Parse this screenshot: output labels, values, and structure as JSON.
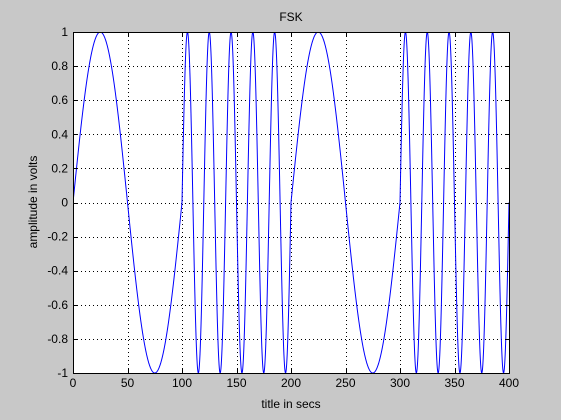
{
  "chart_data": {
    "type": "line",
    "title": "FSK",
    "xlabel": "title in secs",
    "ylabel": "amplitude in volts",
    "xlim": [
      0,
      400
    ],
    "ylim": [
      -1,
      1
    ],
    "xticks": [
      0,
      50,
      100,
      150,
      200,
      250,
      300,
      350,
      400
    ],
    "yticks": [
      -1,
      -0.8,
      -0.6,
      -0.4,
      -0.2,
      0,
      0.2,
      0.4,
      0.6,
      0.8,
      1
    ],
    "xtick_labels": [
      "0",
      "50",
      "100",
      "150",
      "200",
      "250",
      "300",
      "350",
      "400"
    ],
    "ytick_labels": [
      "-1",
      "-0.8",
      "-0.6",
      "-0.4",
      "-0.2",
      "0",
      "0.2",
      "0.4",
      "0.6",
      "0.8",
      "1"
    ],
    "grid": "dotted",
    "series": [
      {
        "color": "#0000ff",
        "segments": [
          {
            "x_start": 0,
            "x_end": 100,
            "amplitude": 1,
            "period": 100
          },
          {
            "x_start": 100,
            "x_end": 200,
            "amplitude": 1,
            "period": 20
          },
          {
            "x_start": 200,
            "x_end": 300,
            "amplitude": 1,
            "period": 100
          },
          {
            "x_start": 300,
            "x_end": 400,
            "amplitude": 1,
            "period": 20
          }
        ]
      }
    ]
  },
  "colors": {
    "figure_background": "#c8c8c8",
    "axes_background": "#ffffff",
    "line": "#0000ff"
  }
}
